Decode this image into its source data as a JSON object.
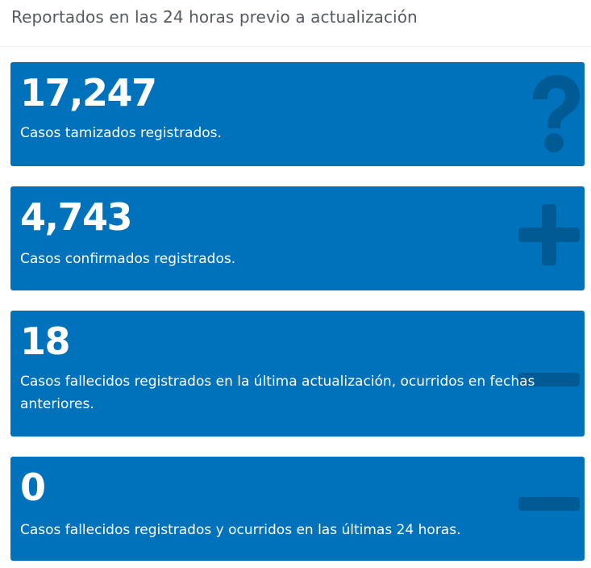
{
  "header": {
    "title": "Reportados en las 24 horas previo a actualización"
  },
  "colors": {
    "card_bg": "#0072bc",
    "icon": "#005a94",
    "text": "#ffffff",
    "header_text": "#555a60"
  },
  "cards": [
    {
      "value": "17,247",
      "label": "Casos tamizados registrados.",
      "icon": "question-icon"
    },
    {
      "value": "4,743",
      "label": "Casos confirmados registrados.",
      "icon": "plus-icon"
    },
    {
      "value": "18",
      "label": "Casos fallecidos registrados en la última actualización, ocurridos en fechas anteriores.",
      "icon": "minus-icon"
    },
    {
      "value": "0",
      "label": "Casos fallecidos registrados y ocurridos en las últimas 24 horas.",
      "icon": "minus-icon"
    }
  ]
}
